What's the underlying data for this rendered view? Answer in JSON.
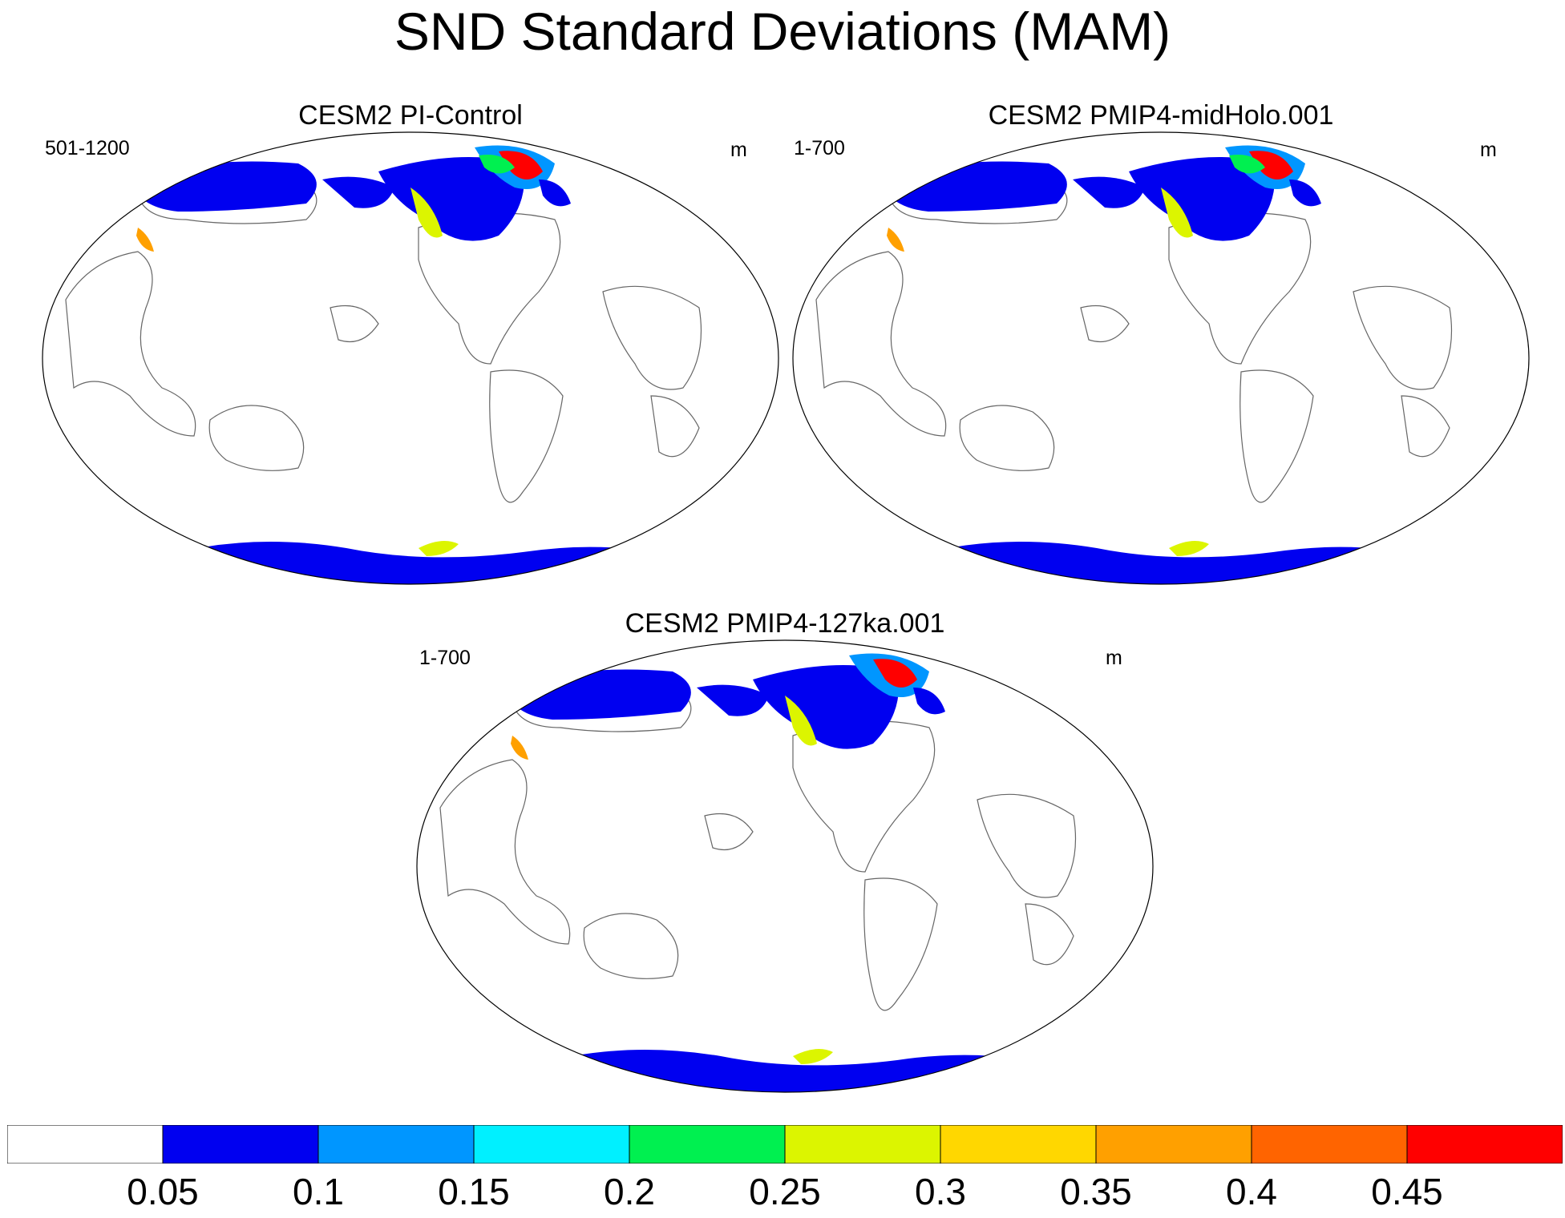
{
  "title": "SND Standard Deviations (MAM)",
  "panels": [
    {
      "title": "CESM2 PI-Control",
      "left_label": "501-1200",
      "right_label": "m"
    },
    {
      "title": "CESM2 PMIP4-midHolo.001",
      "left_label": "1-700",
      "right_label": "m"
    },
    {
      "title": "CESM2 PMIP4-127ka.001",
      "left_label": "1-700",
      "right_label": "m"
    }
  ],
  "colorbar": {
    "levels": [
      "0.05",
      "0.1",
      "0.15",
      "0.2",
      "0.25",
      "0.3",
      "0.35",
      "0.4",
      "0.45"
    ],
    "colors": [
      "#ffffff",
      "#0000f0",
      "#0096ff",
      "#00f0ff",
      "#00f050",
      "#dcf500",
      "#ffd700",
      "#ffa000",
      "#ff6400",
      "#ff0000"
    ]
  },
  "map_colors": {
    "low": "#0000f0",
    "mid": "#0096ff",
    "cyan": "#00f0ff",
    "green": "#00f050",
    "yellow": "#dcf500",
    "orange": "#ffa000",
    "red": "#ff0000",
    "coast": "#666666"
  }
}
